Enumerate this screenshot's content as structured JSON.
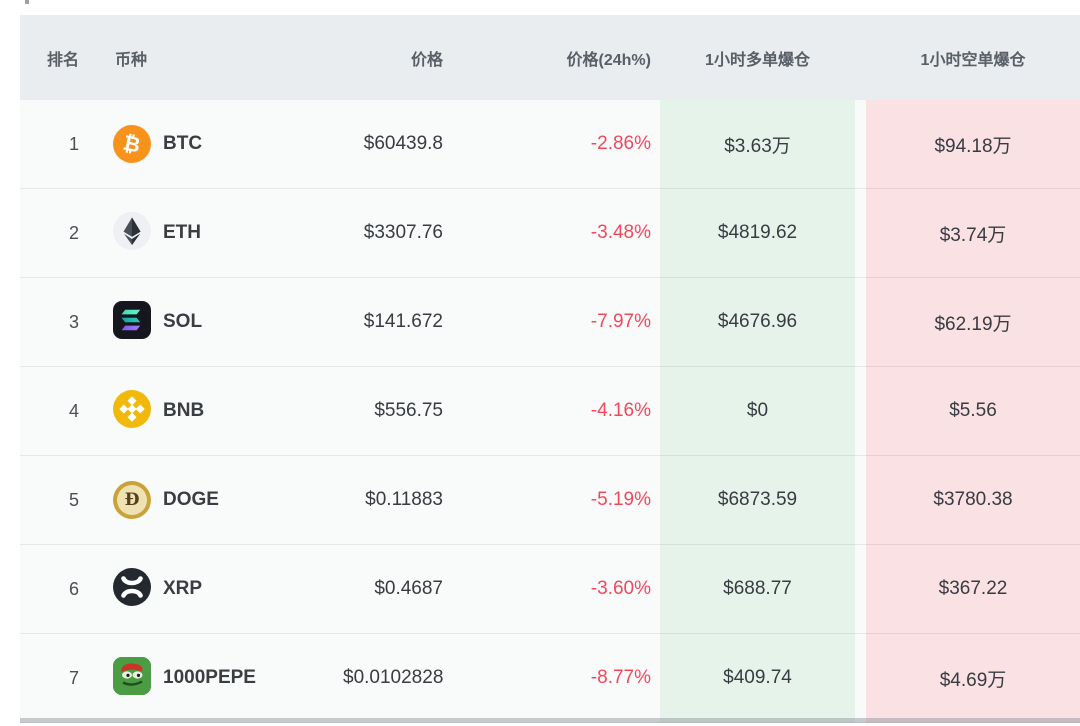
{
  "table": {
    "columns": [
      {
        "key": "rank",
        "label": "排名"
      },
      {
        "key": "coin",
        "label": "币种"
      },
      {
        "key": "price",
        "label": "价格"
      },
      {
        "key": "change",
        "label": "价格(24h%)"
      },
      {
        "key": "long",
        "label": "1小时多单爆仓"
      },
      {
        "key": "short",
        "label": "1小时空单爆仓"
      }
    ],
    "rows": [
      {
        "rank": "1",
        "symbol": "BTC",
        "icon": "btc-icon",
        "price": "$60439.8",
        "change": "-2.86%",
        "long": "$3.63万",
        "short": "$94.18万"
      },
      {
        "rank": "2",
        "symbol": "ETH",
        "icon": "eth-icon",
        "price": "$3307.76",
        "change": "-3.48%",
        "long": "$4819.62",
        "short": "$3.74万"
      },
      {
        "rank": "3",
        "symbol": "SOL",
        "icon": "sol-icon",
        "price": "$141.672",
        "change": "-7.97%",
        "long": "$4676.96",
        "short": "$62.19万"
      },
      {
        "rank": "4",
        "symbol": "BNB",
        "icon": "bnb-icon",
        "price": "$556.75",
        "change": "-4.16%",
        "long": "$0",
        "short": "$5.56"
      },
      {
        "rank": "5",
        "symbol": "DOGE",
        "icon": "doge-icon",
        "price": "$0.11883",
        "change": "-5.19%",
        "long": "$6873.59",
        "short": "$3780.38"
      },
      {
        "rank": "6",
        "symbol": "XRP",
        "icon": "xrp-icon",
        "price": "$0.4687",
        "change": "-3.60%",
        "long": "$688.77",
        "short": "$367.22"
      },
      {
        "rank": "7",
        "symbol": "1000PEPE",
        "icon": "pepe-icon",
        "price": "$0.0102828",
        "change": "-8.77%",
        "long": "$409.74",
        "short": "$4.69万"
      }
    ],
    "colors": {
      "header_bg": "#e9edef",
      "long_band_bg": "#e5f3ea",
      "short_band_bg": "#f9e1e4",
      "negative_text": "#f2485c",
      "value_text": "#383c42",
      "header_text": "#585f66"
    }
  }
}
